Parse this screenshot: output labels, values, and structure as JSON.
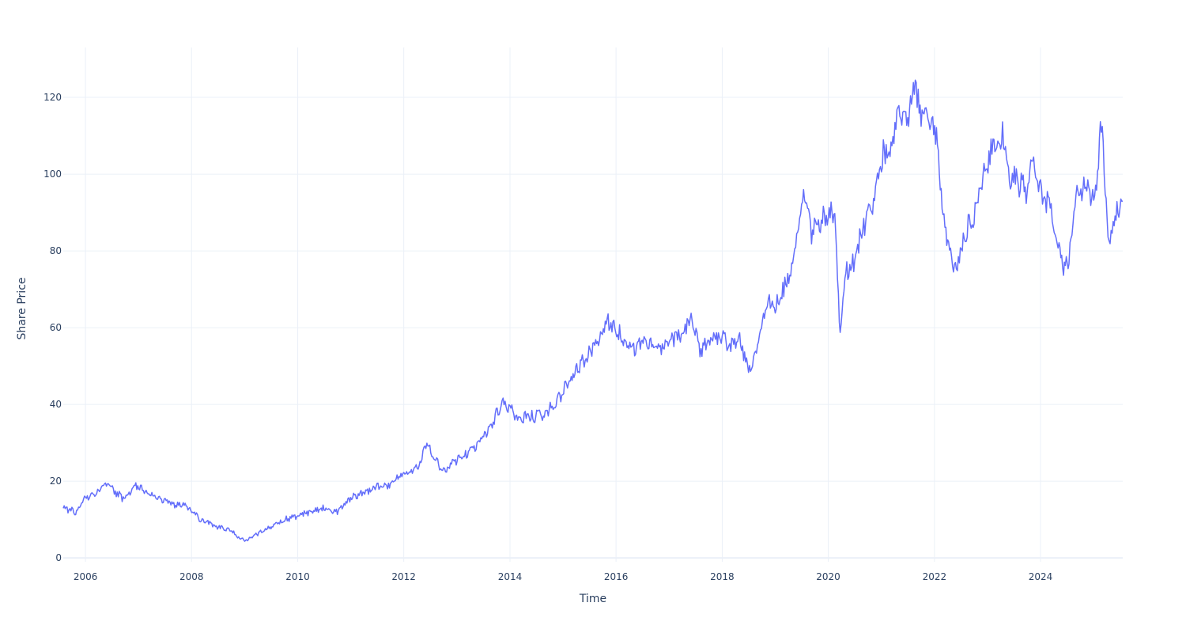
{
  "chart_data": {
    "type": "line",
    "title": "",
    "xlabel": "Time",
    "ylabel": "Share Price",
    "xlim": [
      "2005-08-01",
      "2025-07-20"
    ],
    "ylim": [
      -1,
      133
    ],
    "x_ticks": [
      "2006",
      "2008",
      "2010",
      "2012",
      "2014",
      "2016",
      "2018",
      "2020",
      "2022",
      "2024"
    ],
    "y_ticks": [
      0,
      20,
      40,
      60,
      80,
      100,
      120
    ],
    "grid": true,
    "legend": "none",
    "colors": {
      "line": "#636efa",
      "grid": "#ebf0f8",
      "text": "#2a3f5f",
      "zeroline": "#ebf0f8"
    },
    "series": [
      {
        "x": [
          "2005-08-01",
          "2005-11-01",
          "2006-01-01",
          "2006-04-01",
          "2006-06-01",
          "2006-08-01",
          "2006-10-01",
          "2006-12-01",
          "2007-03-01",
          "2007-06-01",
          "2007-09-01",
          "2007-12-01",
          "2008-03-01",
          "2008-06-01",
          "2008-09-01",
          "2008-11-20",
          "2009-01-01",
          "2009-04-01",
          "2009-07-01",
          "2009-10-01",
          "2010-01-01",
          "2010-04-01",
          "2010-07-01",
          "2010-10-01",
          "2011-01-01",
          "2011-04-01",
          "2011-07-01",
          "2011-10-01",
          "2012-01-01",
          "2012-04-15",
          "2012-06-01",
          "2012-08-01",
          "2012-10-01",
          "2012-12-01",
          "2013-03-01",
          "2013-06-01",
          "2013-09-01",
          "2013-11-01",
          "2014-01-01",
          "2014-03-01",
          "2014-06-01",
          "2014-09-01",
          "2014-11-01",
          "2015-02-01",
          "2015-05-01",
          "2015-08-01",
          "2015-11-01",
          "2016-02-01",
          "2016-05-01",
          "2016-08-01",
          "2016-11-01",
          "2017-01-01",
          "2017-04-01",
          "2017-06-01",
          "2017-08-01",
          "2017-10-01",
          "2018-01-01",
          "2018-03-01",
          "2018-05-01",
          "2018-07-01",
          "2018-09-01",
          "2018-11-01",
          "2019-01-01",
          "2019-03-01",
          "2019-05-01",
          "2019-07-15",
          "2019-09-01",
          "2019-11-01",
          "2020-01-01",
          "2020-02-15",
          "2020-03-23",
          "2020-05-01",
          "2020-07-01",
          "2020-09-01",
          "2020-11-01",
          "2021-01-01",
          "2021-03-01",
          "2021-05-01",
          "2021-07-01",
          "2021-08-15",
          "2021-10-01",
          "2021-12-01",
          "2022-01-15",
          "2022-03-01",
          "2022-04-15",
          "2022-06-01",
          "2022-08-01",
          "2022-10-01",
          "2022-12-01",
          "2023-02-01",
          "2023-04-15",
          "2023-06-01",
          "2023-08-01",
          "2023-10-01",
          "2023-11-01",
          "2024-01-01",
          "2024-03-01",
          "2024-05-01",
          "2024-06-01",
          "2024-07-15",
          "2024-09-01",
          "2024-11-01",
          "2025-01-01",
          "2025-03-01",
          "2025-04-10",
          "2025-05-15",
          "2025-07-20"
        ],
        "y": [
          13,
          12,
          15.5,
          17.5,
          19,
          17,
          15,
          19,
          17.5,
          15.5,
          14,
          13.5,
          10,
          8.5,
          7.5,
          5.5,
          4.5,
          6.5,
          8,
          10,
          11,
          12,
          13,
          12,
          15.5,
          17,
          18.5,
          19,
          22,
          24,
          30,
          26,
          22.5,
          25,
          27,
          30,
          35,
          40,
          39,
          36,
          37,
          37.5,
          40,
          45,
          50,
          55,
          62,
          58,
          55,
          56,
          54,
          57,
          58,
          63,
          54,
          56,
          58,
          55,
          57,
          49,
          55,
          67,
          65,
          70,
          77,
          97,
          85,
          87,
          90,
          88,
          57,
          75,
          77,
          87,
          92,
          104,
          107,
          115,
          113,
          125,
          115,
          113,
          110,
          90,
          80,
          75,
          85,
          90,
          100,
          107,
          110,
          100,
          98,
          95,
          104,
          95,
          92,
          83,
          75,
          78,
          95,
          98,
          92,
          115,
          82,
          87,
          93
        ]
      }
    ]
  }
}
